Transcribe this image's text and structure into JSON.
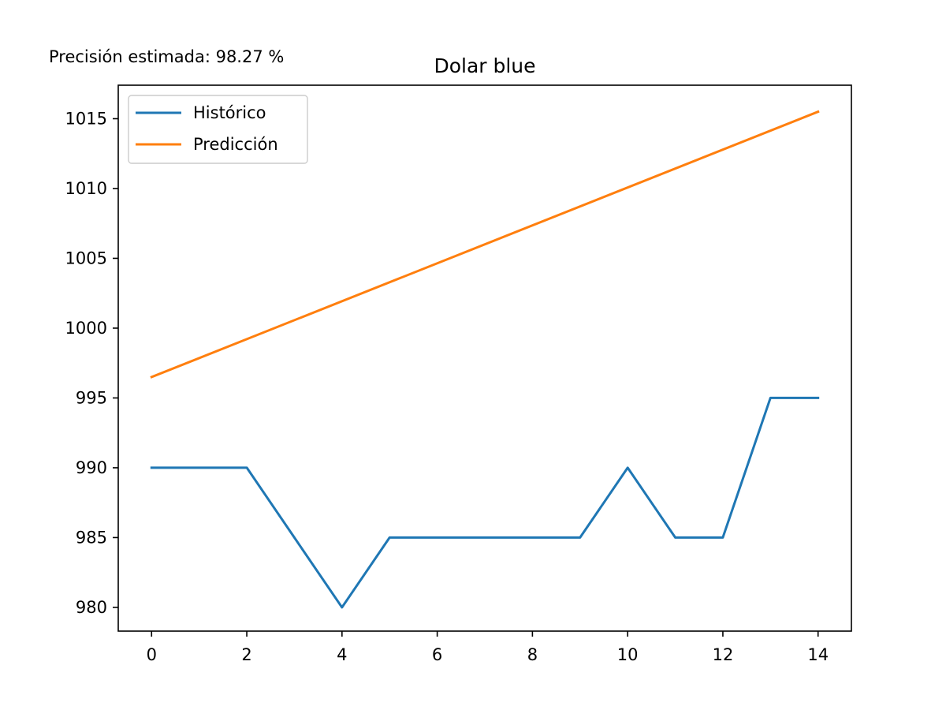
{
  "annotation": "Precisión estimada: 98.27 %",
  "chart_data": {
    "type": "line",
    "title": "Dolar blue",
    "xlabel": "",
    "ylabel": "",
    "xlim": [
      -0.7,
      14.7
    ],
    "ylim": [
      978.3,
      1017.4
    ],
    "x_ticks": [
      0,
      2,
      4,
      6,
      8,
      10,
      12,
      14
    ],
    "y_ticks": [
      980,
      985,
      990,
      995,
      1000,
      1005,
      1010,
      1015
    ],
    "grid": false,
    "legend_position": "top-left",
    "series": [
      {
        "name": "Histórico",
        "color": "#1f77b4",
        "x": [
          0,
          1,
          2,
          3,
          4,
          5,
          6,
          7,
          8,
          9,
          10,
          11,
          12,
          13,
          14
        ],
        "y": [
          990,
          990,
          990,
          985,
          980,
          985,
          985,
          985,
          985,
          985,
          990,
          985,
          985,
          995,
          995
        ]
      },
      {
        "name": "Predicción",
        "color": "#ff7f0e",
        "x": [
          0,
          14
        ],
        "y": [
          996.5,
          1015.5
        ]
      }
    ]
  }
}
